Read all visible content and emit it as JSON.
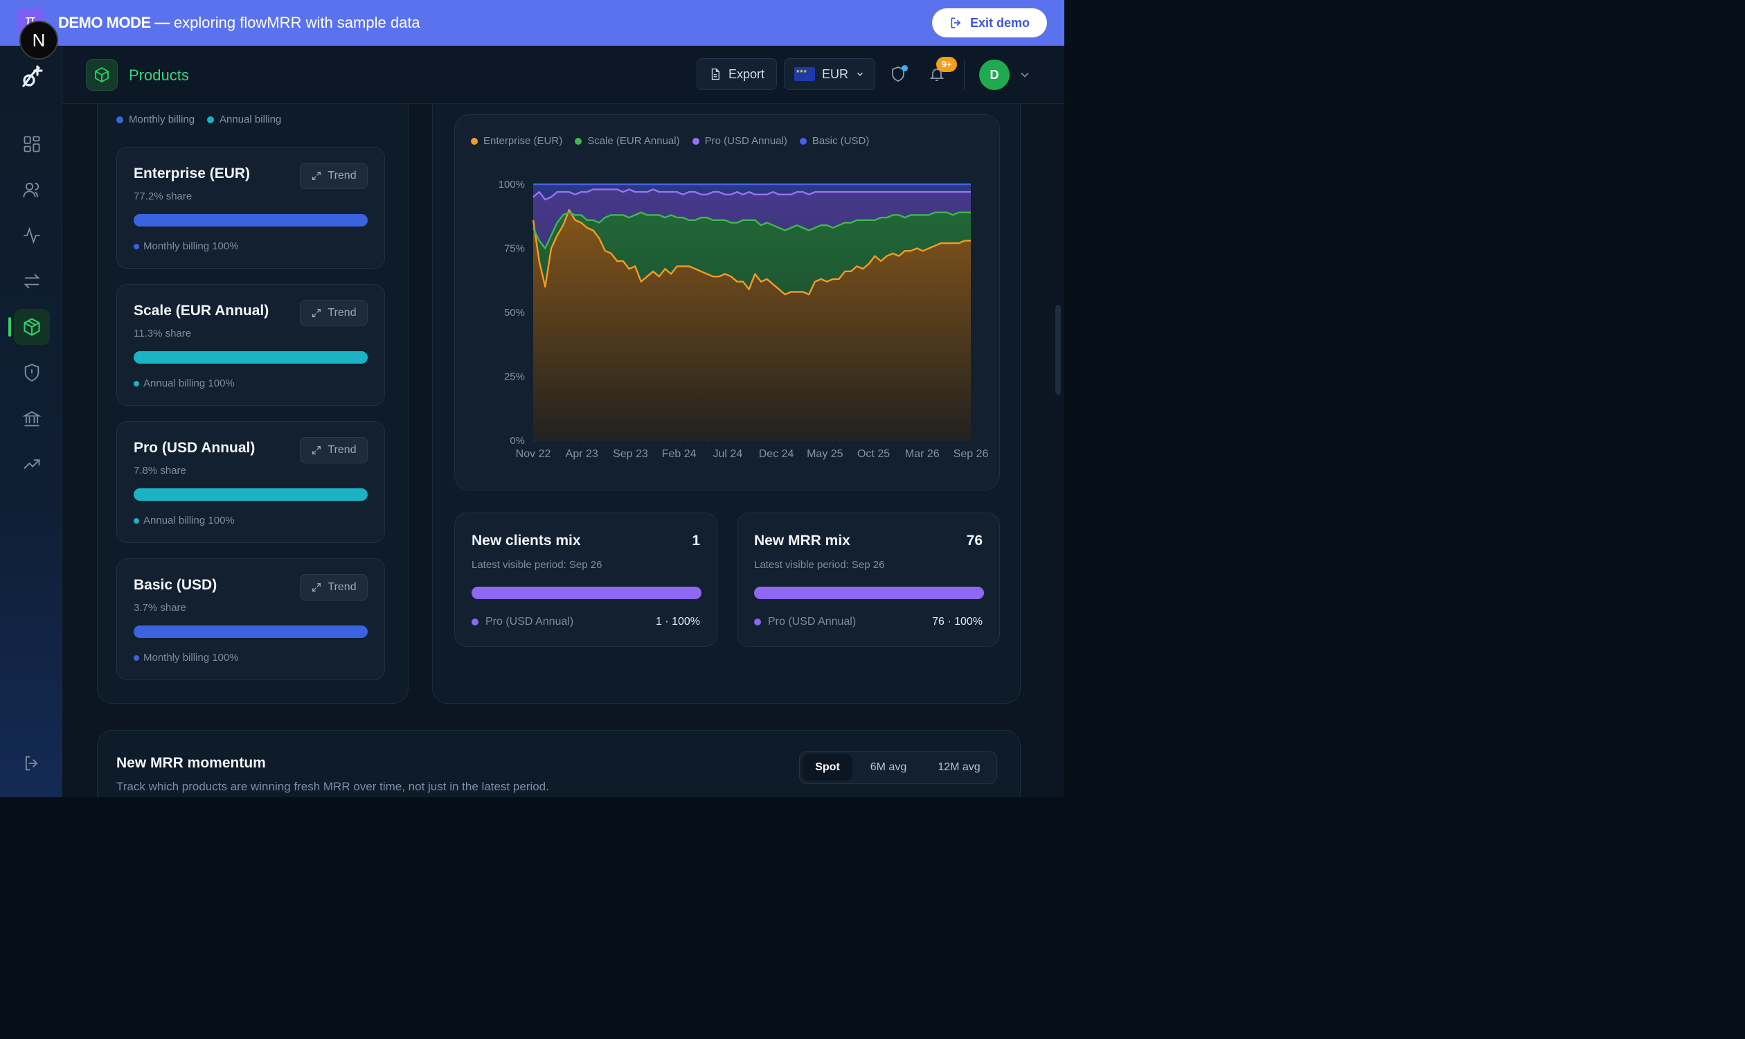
{
  "banner": {
    "badge": "π",
    "mode_label": "DEMO MODE —",
    "text": " exploring flowMRR with sample data",
    "exit_label": "Exit demo"
  },
  "overlay_badge": "N",
  "topbar": {
    "page_title": "Products",
    "export_label": "Export",
    "currency": "EUR",
    "notification_count": "9+",
    "avatar_initial": "D"
  },
  "billing_legend": [
    {
      "label": "Monthly billing",
      "color": "#3b63e0"
    },
    {
      "label": "Annual billing",
      "color": "#1bb3c4"
    }
  ],
  "products": [
    {
      "name": "Enterprise (EUR)",
      "share": "77.2% share",
      "trend_label": "Trend",
      "billing": "Monthly billing 100%",
      "color": "#3b63e0"
    },
    {
      "name": "Scale (EUR Annual)",
      "share": "11.3% share",
      "trend_label": "Trend",
      "billing": "Annual billing 100%",
      "color": "#1bb3c4"
    },
    {
      "name": "Pro (USD Annual)",
      "share": "7.8% share",
      "trend_label": "Trend",
      "billing": "Annual billing 100%",
      "color": "#1bb3c4"
    },
    {
      "name": "Basic (USD)",
      "share": "3.7% share",
      "trend_label": "Trend",
      "billing": "Monthly billing 100%",
      "color": "#3b63e0"
    }
  ],
  "chart_data": {
    "type": "area",
    "stacked": true,
    "normalized": true,
    "legend_position": "top-left",
    "ylim": [
      0,
      100
    ],
    "yticks": [
      "0%",
      "25%",
      "50%",
      "75%",
      "100%"
    ],
    "xticks": [
      "Nov 22",
      "Apr 23",
      "Sep 23",
      "Feb 24",
      "Jul 24",
      "Dec 24",
      "May 25",
      "Oct 25",
      "Mar 26",
      "Sep 26"
    ],
    "grid": true,
    "series": [
      {
        "name": "Enterprise (EUR)",
        "color": "#f59a27",
        "values": [
          86,
          70,
          60,
          75,
          80,
          84,
          90,
          86,
          85,
          83,
          82,
          79,
          74,
          73,
          70,
          70,
          67,
          68,
          62,
          64,
          66,
          64,
          67,
          65,
          68,
          68,
          68,
          67,
          66,
          65,
          64,
          64,
          65,
          64,
          62,
          62,
          59,
          65,
          62,
          63,
          61,
          59,
          57,
          58,
          58,
          58,
          57,
          62,
          63,
          62,
          63,
          63,
          66,
          66,
          68,
          67,
          69,
          72,
          70,
          72,
          73,
          72,
          74,
          74,
          75,
          74,
          75,
          76,
          77,
          77,
          77,
          77,
          78,
          78
        ]
      },
      {
        "name": "Scale (EUR Annual)",
        "color": "#3fb84f",
        "values": [
          83,
          78,
          75,
          80,
          85,
          88,
          89,
          88,
          88,
          86,
          86,
          85,
          87,
          88,
          88,
          88,
          87,
          88,
          89,
          88,
          88,
          88,
          87,
          88,
          87,
          87,
          86,
          86,
          87,
          87,
          86,
          86,
          86,
          85,
          85,
          86,
          86,
          86,
          84,
          85,
          84,
          83,
          82,
          83,
          84,
          83,
          82,
          83,
          84,
          84,
          83,
          84,
          85,
          85,
          86,
          86,
          86,
          86,
          87,
          87,
          88,
          88,
          87,
          88,
          88,
          88,
          88,
          89,
          89,
          89,
          88,
          89,
          89,
          89
        ]
      },
      {
        "name": "Pro (USD Annual)",
        "color": "#9a72f5",
        "values": [
          95,
          97,
          94,
          95,
          97,
          97,
          97,
          96,
          97,
          97,
          98,
          98,
          98,
          98,
          98,
          97,
          98,
          97,
          97,
          97,
          98,
          97,
          97,
          97,
          97,
          96,
          97,
          97,
          96,
          96,
          97,
          97,
          96,
          96,
          97,
          96,
          97,
          96,
          96,
          96,
          97,
          96,
          96,
          96,
          97,
          97,
          96,
          97,
          97,
          97,
          97,
          97,
          97,
          97,
          97,
          97,
          97,
          97,
          97,
          97,
          97,
          97,
          97,
          97,
          97,
          97,
          97,
          97,
          97,
          97,
          97,
          97,
          97,
          97
        ]
      },
      {
        "name": "Basic (USD)",
        "color": "#4563e3",
        "values": [
          100,
          100,
          100,
          100,
          100,
          100,
          100,
          100,
          100,
          100,
          100,
          100,
          100,
          100,
          100,
          100,
          100,
          100,
          100,
          100,
          100,
          100,
          100,
          100,
          100,
          100,
          100,
          100,
          100,
          100,
          100,
          100,
          100,
          100,
          100,
          100,
          100,
          100,
          100,
          100,
          100,
          100,
          100,
          100,
          100,
          100,
          100,
          100,
          100,
          100,
          100,
          100,
          100,
          100,
          100,
          100,
          100,
          100,
          100,
          100,
          100,
          100,
          100,
          100,
          100,
          100,
          100,
          100,
          100,
          100,
          100,
          100,
          100,
          100
        ]
      }
    ]
  },
  "mix_cards": [
    {
      "title": "New clients mix",
      "value": "1",
      "subtitle": "Latest visible period: Sep 26",
      "legend": "Pro (USD Annual)",
      "pct": "1 · 100%"
    },
    {
      "title": "New MRR mix",
      "value": "76",
      "subtitle": "Latest visible period: Sep 26",
      "legend": "Pro (USD Annual)",
      "pct": "76 · 100%"
    }
  ],
  "momentum": {
    "title": "New MRR momentum",
    "subtitle": "Track which products are winning fresh MRR over time, not just in the latest period.",
    "options": [
      "Spot",
      "6M avg",
      "12M avg"
    ],
    "active": "Spot"
  }
}
